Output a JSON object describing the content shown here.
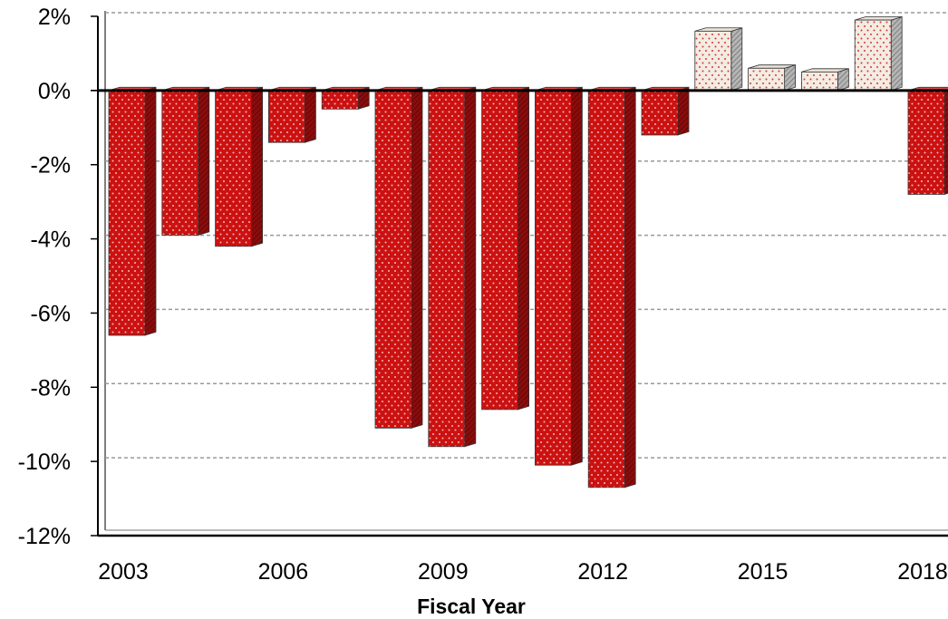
{
  "chart_data": {
    "type": "bar",
    "title": "",
    "xlabel": "Fiscal Year",
    "ylabel": "",
    "ylim": [
      -12,
      2
    ],
    "yticks": [
      2,
      0,
      -2,
      -4,
      -6,
      -8,
      -10,
      -12
    ],
    "ytick_labels": [
      "2%",
      "0%",
      "-2%",
      "-4%",
      "-6%",
      "-8%",
      "-10%",
      "-12%"
    ],
    "xtick_labels": [
      "2003",
      "2006",
      "2009",
      "2012",
      "2015",
      "2018"
    ],
    "categories": [
      "2003",
      "2004",
      "2005",
      "2006",
      "2007",
      "2008",
      "2009",
      "2010",
      "2011",
      "2012",
      "2013",
      "2014",
      "2015",
      "2016",
      "2017",
      "2018"
    ],
    "values": [
      -6.6,
      -3.9,
      -4.2,
      -1.4,
      -0.5,
      -9.1,
      -9.6,
      -8.6,
      -10.1,
      -10.7,
      -1.2,
      1.6,
      0.6,
      0.5,
      1.9,
      -2.8
    ],
    "grid": true,
    "colors": {
      "negative": "#cc1111",
      "negative_side": "#7a0a0a",
      "positive": "#f3ece2",
      "positive_side": "#9a9a9a",
      "grid": "#9a9a9a"
    }
  }
}
